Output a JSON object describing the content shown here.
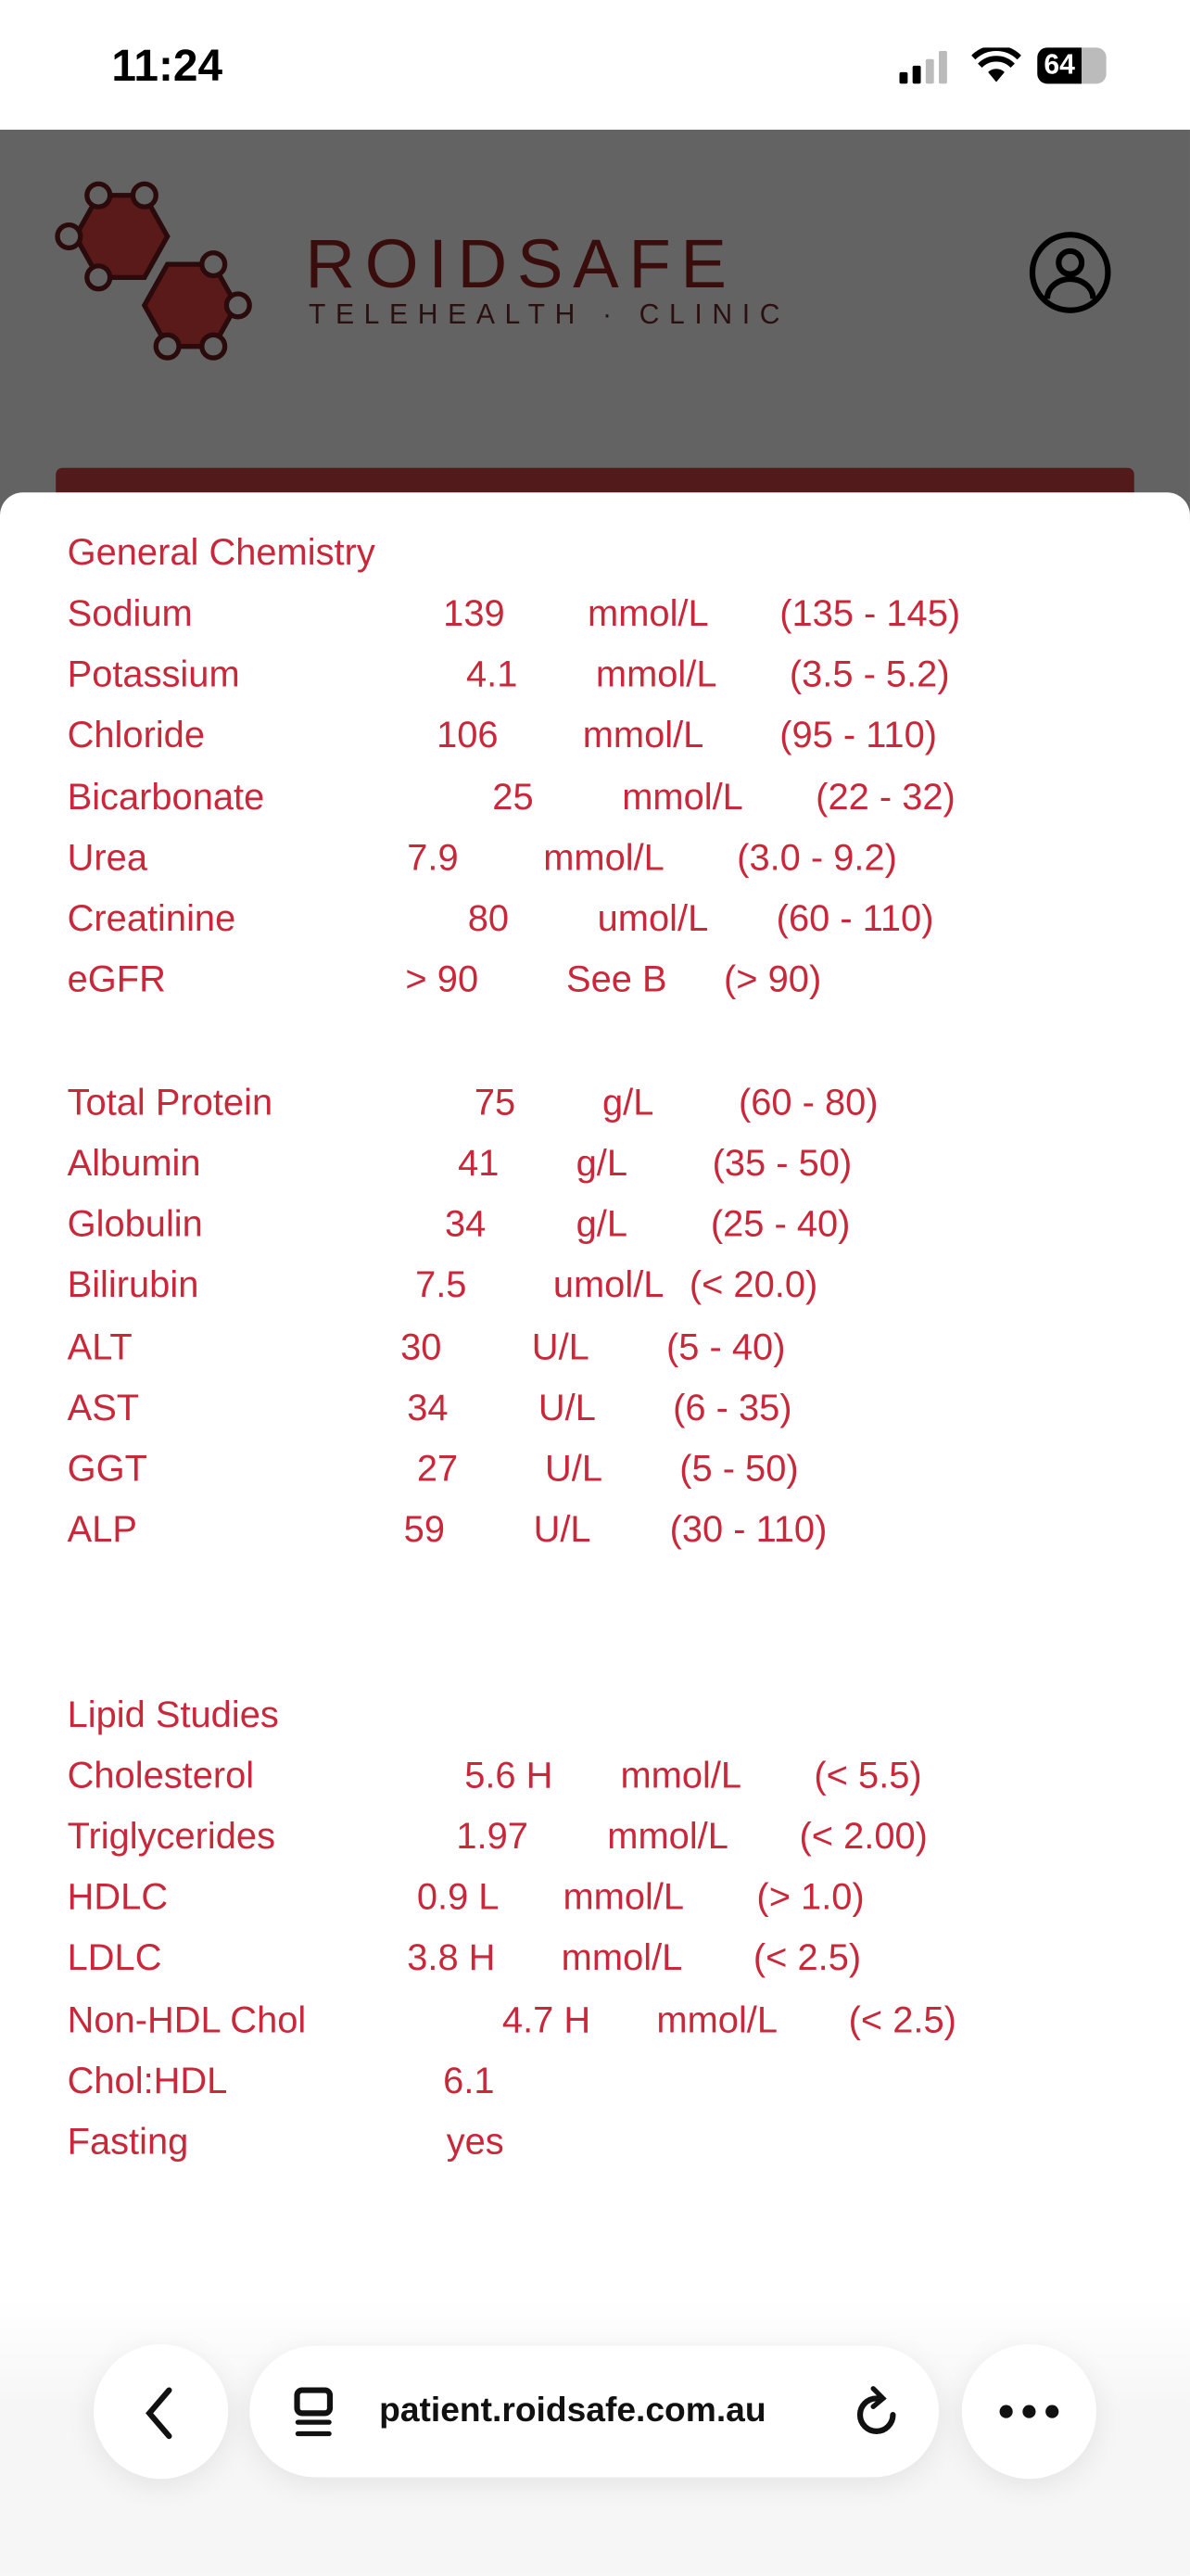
{
  "status_bar": {
    "time": "11:24",
    "battery": "64"
  },
  "header": {
    "brand": "ROIDSAFE",
    "tagline": "TELEHEALTH · CLINIC",
    "brand_color": "#521a1a"
  },
  "text_color": "#c8283a",
  "sections": [
    {
      "title": "General Chemistry",
      "rows": [
        {
          "name": "Sodium",
          "value": "139",
          "unit": "mmol/L",
          "range": "(135 - 145)"
        },
        {
          "name": "Potassium",
          "value": "4.1",
          "unit": "mmol/L",
          "range": "(3.5 - 5.2)"
        },
        {
          "name": "Chloride",
          "value": "106",
          "unit": "mmol/L",
          "range": "(95 - 110)"
        },
        {
          "name": "Bicarbonate",
          "value": "25",
          "unit": "mmol/L",
          "range": "(22 - 32)"
        },
        {
          "name": "Urea",
          "value": "7.9",
          "unit": "mmol/L",
          "range": "(3.0 - 9.2)"
        },
        {
          "name": "Creatinine",
          "value": "80",
          "unit": "umol/L",
          "range": "(60 - 110)"
        },
        {
          "name": "eGFR",
          "value": "> 90",
          "unit": "See B",
          "range": "(> 90)"
        }
      ]
    },
    {
      "title": "",
      "rows": [
        {
          "name": "Total Protein",
          "value": "75",
          "unit": "g/L",
          "range": "(60 - 80)"
        },
        {
          "name": "Albumin",
          "value": "41",
          "unit": "g/L",
          "range": "(35 - 50)"
        },
        {
          "name": "Globulin",
          "value": "34",
          "unit": "g/L",
          "range": "(25 - 40)"
        },
        {
          "name": "Bilirubin",
          "value": "7.5",
          "unit": "umol/L",
          "range": "(< 20.0)"
        },
        {
          "name": "ALT",
          "value": "30",
          "unit": "U/L",
          "range": "(5 - 40)"
        },
        {
          "name": "AST",
          "value": "34",
          "unit": "U/L",
          "range": "(6 - 35)"
        },
        {
          "name": "GGT",
          "value": "27",
          "unit": "U/L",
          "range": "(5 - 50)"
        },
        {
          "name": "ALP",
          "value": "59",
          "unit": "U/L",
          "range": "(30 - 110)"
        }
      ]
    },
    {
      "title": "Lipid Studies",
      "rows": [
        {
          "name": "Cholesterol",
          "value": "5.6 H",
          "unit": "mmol/L",
          "range": "(< 5.5)"
        },
        {
          "name": "Triglycerides",
          "value": "1.97",
          "unit": "mmol/L",
          "range": "(< 2.00)"
        },
        {
          "name": "HDLC",
          "value": "0.9 L",
          "unit": "mmol/L",
          "range": "(> 1.0)"
        },
        {
          "name": "LDLC",
          "value": "3.8 H",
          "unit": "mmol/L",
          "range": "(< 2.5)"
        },
        {
          "name": "Non-HDL Chol",
          "value": "4.7 H",
          "unit": "mmol/L",
          "range": "(< 2.5)"
        },
        {
          "name": "Chol:HDL",
          "value": "6.1"
        },
        {
          "name": "Fasting",
          "value": "yes"
        }
      ]
    }
  ],
  "browser": {
    "url": "patient.roidsafe.com.au",
    "icons": [
      "back-icon",
      "tab-overview-icon",
      "reload-icon",
      "more-icon"
    ]
  }
}
